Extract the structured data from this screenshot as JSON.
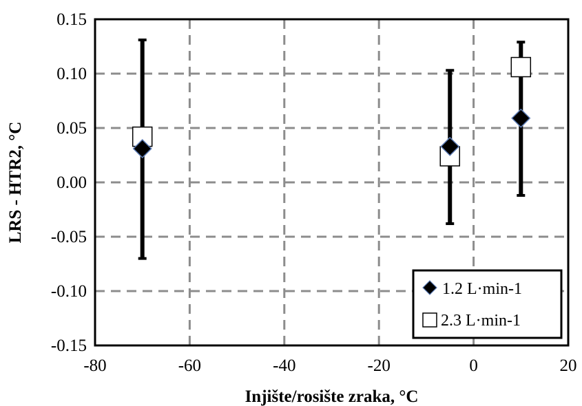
{
  "chart_data": {
    "type": "scatter",
    "xlabel": "Injište/rosište zraka, °C",
    "ylabel": "LRS - HTR2, °C",
    "xlim": [
      -80,
      20
    ],
    "ylim": [
      -0.15,
      0.15
    ],
    "xticks": [
      -80,
      -60,
      -40,
      -20,
      0,
      20
    ],
    "xtick_labels": [
      "-80",
      "-60",
      "-40",
      "-20",
      "0",
      "20"
    ],
    "yticks": [
      -0.15,
      -0.1,
      -0.05,
      0.0,
      0.05,
      0.1,
      0.15
    ],
    "ytick_labels": [
      "-0.15",
      "-0.10",
      "-0.05",
      "0.00",
      "0.05",
      "0.10",
      "0.15"
    ],
    "grid": true,
    "legend_position": "bottom-right",
    "series": [
      {
        "name": "1.2 L·min-1",
        "marker": "diamond",
        "color": "#000000",
        "marker_edge": "#5b7bb5",
        "points": [
          {
            "x": -70,
            "y": 0.031,
            "err_low": -0.07,
            "err_high": 0.131
          },
          {
            "x": -5,
            "y": 0.033,
            "err_low": -0.038,
            "err_high": 0.103
          },
          {
            "x": 10,
            "y": 0.059,
            "err_low": -0.012,
            "err_high": 0.129
          }
        ]
      },
      {
        "name": "2.3 L·min-1",
        "marker": "square-open",
        "color": "#000000",
        "points": [
          {
            "x": -70,
            "y": 0.042
          },
          {
            "x": -5,
            "y": 0.024
          },
          {
            "x": 10,
            "y": 0.106
          }
        ]
      }
    ]
  }
}
